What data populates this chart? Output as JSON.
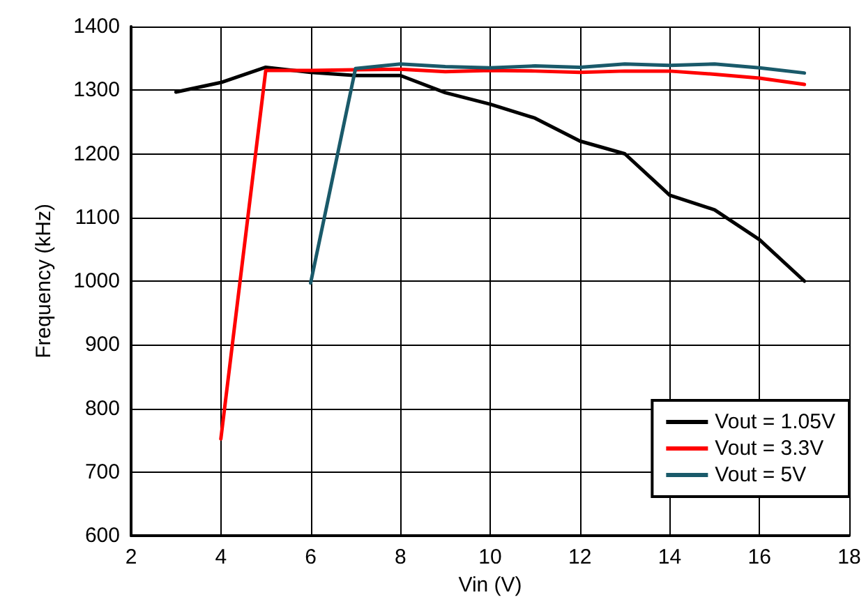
{
  "chart_data": {
    "type": "line",
    "xlabel": "Vin (V)",
    "ylabel": "Frequency (kHz)",
    "xlim": [
      2,
      18
    ],
    "xticks": [
      2,
      4,
      6,
      8,
      10,
      12,
      14,
      16,
      18
    ],
    "ylim": [
      600,
      1400
    ],
    "yticks": [
      600,
      700,
      800,
      900,
      1000,
      1100,
      1200,
      1300,
      1400
    ],
    "grid": true,
    "legend": "bottom right",
    "marker": "none",
    "line_style": "solid",
    "series": [
      {
        "name": "Vout = 1.05V",
        "color": "#000000",
        "x": [
          3,
          4,
          5,
          6,
          7,
          8,
          9,
          10,
          11,
          12,
          13,
          14,
          15,
          16,
          17
        ],
        "values": [
          1297,
          1312,
          1336,
          1328,
          1323,
          1323,
          1296,
          1278,
          1256,
          1220,
          1200,
          1135,
          1112,
          1065,
          1000
        ]
      },
      {
        "name": "Vout = 3.3V",
        "color": "#ff0000",
        "x": [
          4,
          5,
          6,
          7,
          8,
          9,
          10,
          11,
          12,
          13,
          14,
          15,
          16,
          17
        ],
        "values": [
          752,
          1331,
          1331,
          1332,
          1333,
          1329,
          1331,
          1330,
          1328,
          1330,
          1330,
          1325,
          1319,
          1309
        ]
      },
      {
        "name": "Vout = 5V",
        "color": "#1a5a6a",
        "x": [
          6,
          7,
          8,
          9,
          10,
          11,
          12,
          13,
          14,
          15,
          16,
          17
        ],
        "values": [
          997,
          1334,
          1341,
          1337,
          1335,
          1338,
          1336,
          1341,
          1339,
          1341,
          1335,
          1327
        ]
      }
    ]
  }
}
